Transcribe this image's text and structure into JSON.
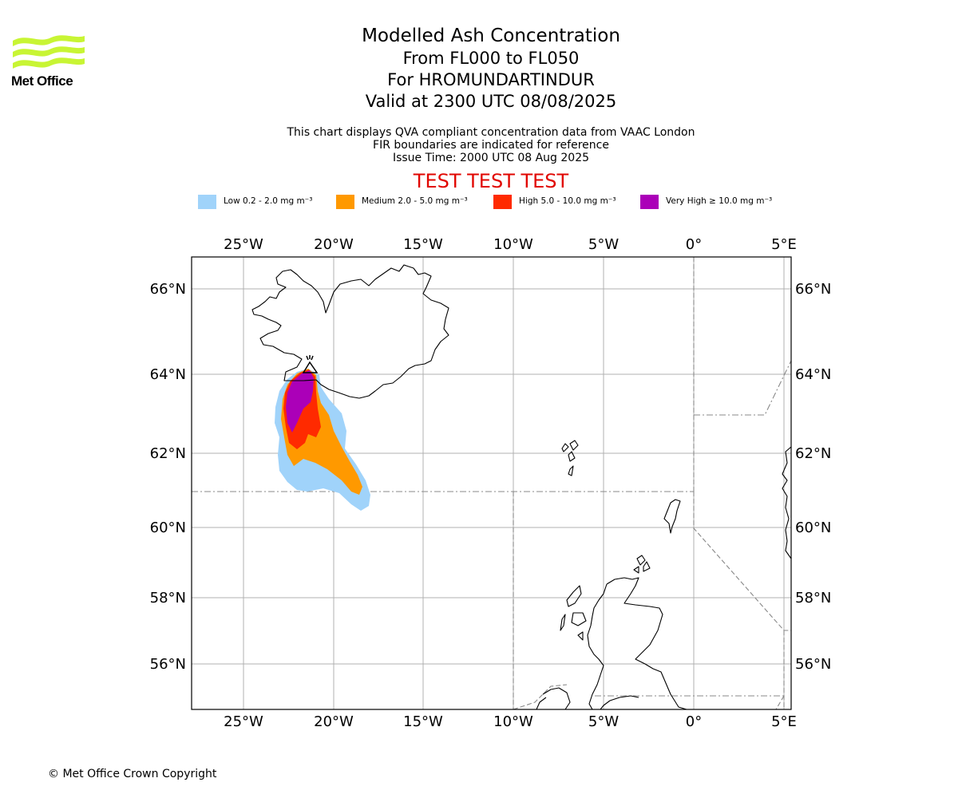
{
  "branding": {
    "logo_text": "Met Office",
    "logo_color": "#c8f534"
  },
  "header": {
    "title": "Modelled Ash Concentration",
    "levels": "From FL000 to FL050",
    "volcano": "For HROMUNDARTINDUR",
    "valid": "Valid at 2300 UTC 08/08/2025"
  },
  "notes": {
    "line1": "This chart displays QVA compliant concentration data from VAAC London",
    "line2": "FIR boundaries are indicated for reference",
    "line3": "Issue Time: 2000 UTC 08 Aug 2025"
  },
  "banner": {
    "text": "TEST TEST TEST",
    "color": "#e10600"
  },
  "legend": [
    {
      "name": "Low",
      "label": "Low 0.2 - 2.0 mg m⁻³",
      "color": "#a0d3fa"
    },
    {
      "name": "Medium",
      "label": "Medium 2.0 - 5.0 mg m⁻³",
      "color": "#ff9900"
    },
    {
      "name": "High",
      "label": "High 5.0 - 10.0 mg m⁻³",
      "color": "#ff2a00"
    },
    {
      "name": "Very High",
      "label": "Very High ≥ 10.0 mg m⁻³",
      "color": "#ab00b8"
    }
  ],
  "map": {
    "lon_range": [
      -28,
      5.5
    ],
    "lat_range": [
      54.8,
      66.8
    ],
    "lon_ticks": [
      "25°W",
      "20°W",
      "15°W",
      "10°W",
      "5°W",
      "0°",
      "5°E"
    ],
    "lat_ticks": [
      "66°N",
      "64°N",
      "62°N",
      "60°N",
      "58°N",
      "56°N"
    ],
    "volcano_marker": "volcano-icon"
  },
  "footer": {
    "copyright": "© Met Office Crown Copyright"
  }
}
